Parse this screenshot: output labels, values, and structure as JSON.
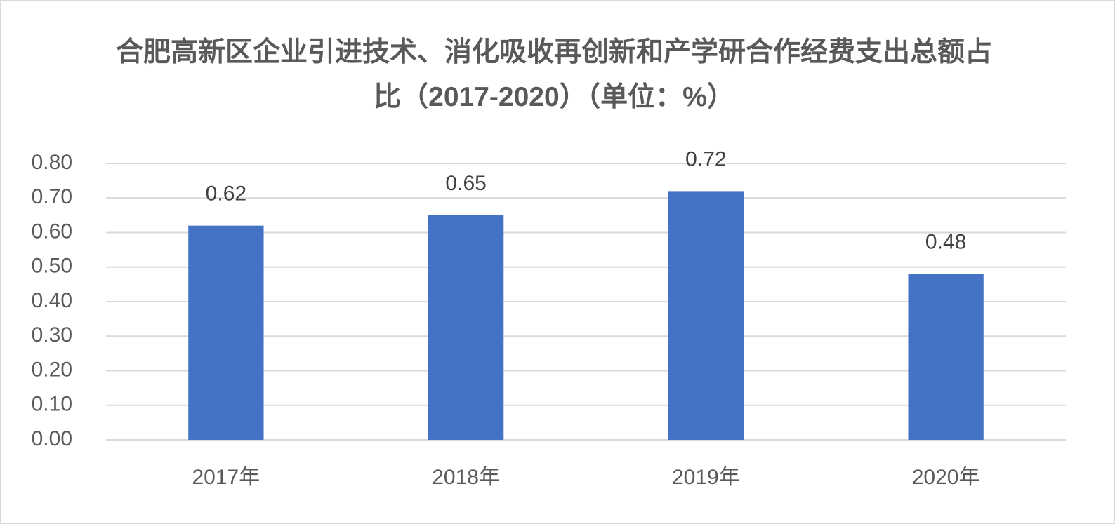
{
  "chart_data": {
    "type": "bar",
    "title": "合肥高新区企业引进技术、消化吸收再创新和产学研合作经费支出总额占比（2017-2020）（单位：%）",
    "categories": [
      "2017年",
      "2018年",
      "2019年",
      "2020年"
    ],
    "values": [
      0.62,
      0.65,
      0.72,
      0.48
    ],
    "color": "#4472c4",
    "ylim": [
      0,
      0.8
    ],
    "yticks": [
      {
        "value": 0,
        "label": "0.00"
      },
      {
        "value": 0.1,
        "label": "0.10"
      },
      {
        "value": 0.2,
        "label": "0.20"
      },
      {
        "value": 0.3,
        "label": "0.30"
      },
      {
        "value": 0.4,
        "label": "0.40"
      },
      {
        "value": 0.5,
        "label": "0.50"
      },
      {
        "value": 0.6,
        "label": "0.60"
      },
      {
        "value": 0.7,
        "label": "0.70"
      },
      {
        "value": 0.8,
        "label": "0.80"
      }
    ],
    "grid": true
  }
}
